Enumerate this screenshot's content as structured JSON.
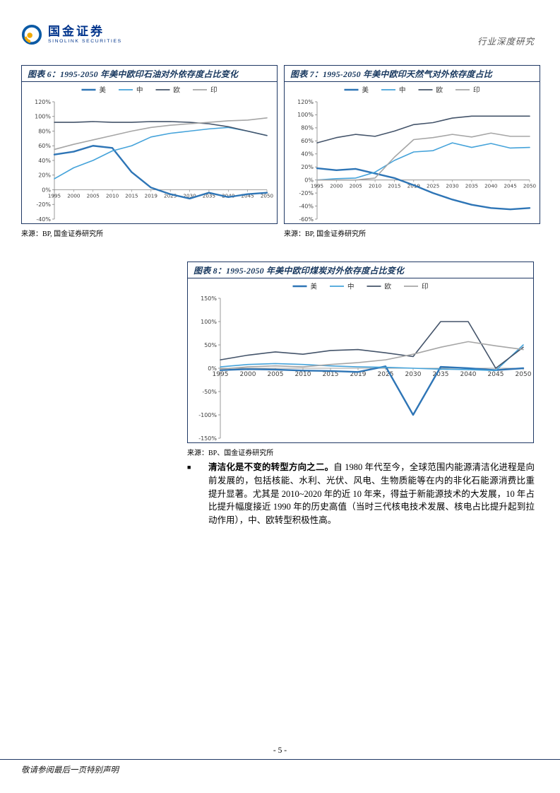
{
  "header": {
    "brand": "国金证券",
    "brand_sub": "SINOLINK SECURITIES",
    "doc_type": "行业深度研究"
  },
  "colors": {
    "accent_navy": "#1F3864",
    "series_us": "#2E75B6",
    "series_cn": "#45A3DA",
    "series_eu": "#44546A",
    "series_in": "#A6A6A6"
  },
  "chart_data": [
    {
      "type": "line",
      "title": "图表 6：1995-2050 年美中欧印石油对外依存度占比变化",
      "source": "来源：BP, 国金证券研究所",
      "legend_position": "top",
      "grid": false,
      "x": [
        "1995",
        "2000",
        "2005",
        "2010",
        "2015",
        "2019",
        "2025",
        "2030",
        "2035",
        "2040",
        "2045",
        "2050"
      ],
      "yticks": [
        120,
        100,
        80,
        60,
        40,
        20,
        0,
        -20,
        -40
      ],
      "ylim": [
        -40,
        120
      ],
      "series": [
        {
          "name": "美",
          "color": "#2E75B6",
          "values": [
            48,
            52,
            60,
            57,
            24,
            3,
            -6,
            -12,
            -4,
            -10,
            -6,
            -4
          ]
        },
        {
          "name": "中",
          "color": "#45A3DA",
          "values": [
            15,
            30,
            40,
            53,
            60,
            72,
            77,
            80,
            83,
            85,
            80,
            74
          ]
        },
        {
          "name": "欧",
          "color": "#44546A",
          "values": [
            92,
            92,
            93,
            92,
            92,
            93,
            93,
            92,
            90,
            86,
            80,
            74
          ]
        },
        {
          "name": "印",
          "color": "#A6A6A6",
          "values": [
            55,
            62,
            68,
            74,
            80,
            85,
            88,
            90,
            92,
            94,
            95,
            98
          ]
        }
      ]
    },
    {
      "type": "line",
      "title": "图表 7：1995-2050 年美中欧印天然气对外依存度占比",
      "source": "来源：BP, 国金证券研究所",
      "legend_position": "top",
      "grid": false,
      "x": [
        "1995",
        "2000",
        "2005",
        "2010",
        "2015",
        "2019",
        "2025",
        "2030",
        "2035",
        "2040",
        "2045",
        "2050"
      ],
      "yticks": [
        120,
        100,
        80,
        60,
        40,
        20,
        0,
        -20,
        -40,
        -60
      ],
      "ylim": [
        -60,
        120
      ],
      "series": [
        {
          "name": "美",
          "color": "#2E75B6",
          "values": [
            18,
            15,
            17,
            10,
            3,
            -8,
            -20,
            -30,
            -38,
            -43,
            -45,
            -43
          ]
        },
        {
          "name": "中",
          "color": "#45A3DA",
          "values": [
            0,
            2,
            3,
            12,
            30,
            43,
            45,
            57,
            50,
            56,
            49,
            50
          ]
        },
        {
          "name": "欧",
          "color": "#44546A",
          "values": [
            57,
            65,
            70,
            67,
            75,
            85,
            88,
            95,
            98,
            98,
            98,
            98
          ]
        },
        {
          "name": "印",
          "color": "#A6A6A6",
          "values": [
            0,
            0,
            0,
            3,
            35,
            62,
            65,
            70,
            66,
            72,
            67,
            67
          ]
        }
      ]
    },
    {
      "type": "line",
      "title": "图表 8：1995-2050 年美中欧印煤炭对外依存度占比变化",
      "source": "来源：BP、国金证券研究所",
      "legend_position": "top",
      "grid": false,
      "x": [
        "1995",
        "2000",
        "2005",
        "2010",
        "2015",
        "2019",
        "2025",
        "2030",
        "2035",
        "2040",
        "2045",
        "2050"
      ],
      "yticks": [
        150,
        100,
        50,
        0,
        -50,
        -100,
        -150
      ],
      "ylim": [
        -150,
        150
      ],
      "series": [
        {
          "name": "美",
          "color": "#2E75B6",
          "values": [
            -4,
            -2,
            -3,
            -5,
            -6,
            -8,
            4,
            -100,
            3,
            0,
            -4,
            0
          ]
        },
        {
          "name": "中",
          "color": "#45A3DA",
          "values": [
            3,
            8,
            10,
            8,
            5,
            3,
            2,
            0,
            -2,
            -3,
            -5,
            50
          ]
        },
        {
          "name": "欧",
          "color": "#44546A",
          "values": [
            18,
            28,
            35,
            30,
            38,
            40,
            33,
            25,
            100,
            100,
            0,
            45
          ]
        },
        {
          "name": "印",
          "color": "#A6A6A6",
          "values": [
            -2,
            3,
            5,
            3,
            8,
            12,
            18,
            30,
            45,
            57,
            48,
            40
          ]
        }
      ]
    }
  ],
  "body": {
    "bullet": "■",
    "bold_text": "清洁化是不变的转型方向之二。",
    "text": "自 1980 年代至今，全球范围内能源清洁化进程是向前发展的，包括核能、水利、光伏、风电、生物质能等在内的非化石能源消费比重提升显著。尤其是 2010~2020 年的近 10 年来，得益于新能源技术的大发展，10 年占比提升幅度接近 1990 年的历史高值（当时三代核电技术发展、核电占比提升起到拉动作用），中、欧转型积极性高。"
  },
  "footer": {
    "page_label": "- 5 -",
    "disclaimer": "敬请参阅最后一页特别声明"
  }
}
